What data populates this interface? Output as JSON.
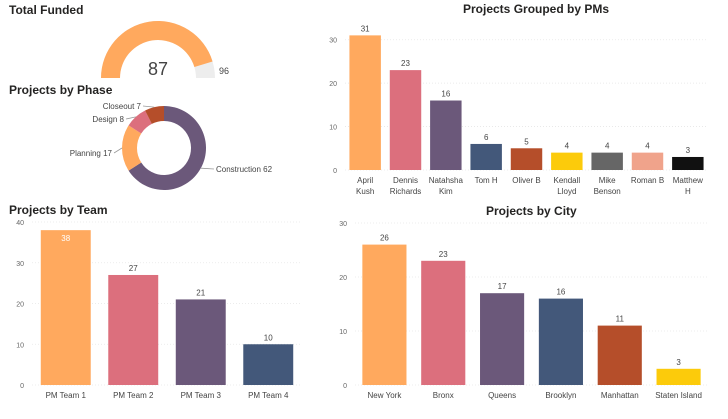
{
  "colors": [
    "#FFA95E",
    "#DC6F7D",
    "#6B587A",
    "#43587A",
    "#B54E2A",
    "#FCCB0B",
    "#666666",
    "#F0A38B",
    "#111111"
  ],
  "chart_data": [
    {
      "id": "total_funded",
      "type": "gauge",
      "title": "Total Funded",
      "value": 87,
      "max": 96,
      "value_label": "87",
      "max_label": "96",
      "fill_color": "#FFA95E",
      "track_color": "#EDEDED"
    },
    {
      "id": "by_phase",
      "type": "pie",
      "donut": true,
      "title": "Projects by Phase",
      "categories": [
        "Construction",
        "Planning",
        "Design",
        "Closeout"
      ],
      "values": [
        62,
        17,
        8,
        7
      ],
      "labels": [
        "Construction 62",
        "Planning 17",
        "Design 8",
        "Closeout 7"
      ],
      "colors": [
        "#6B587A",
        "#FFA95E",
        "#DC6F7D",
        "#B54E2A"
      ]
    },
    {
      "id": "by_pm",
      "type": "bar",
      "title": "Projects Grouped by PMs",
      "categories": [
        [
          "April",
          "Kush"
        ],
        [
          "Dennis",
          "Richards"
        ],
        [
          "Natahsha",
          "Kim"
        ],
        [
          "Tom H"
        ],
        [
          "Oliver B"
        ],
        [
          "Kendall",
          "Lloyd"
        ],
        [
          "Mike",
          "Benson"
        ],
        [
          "Roman B"
        ],
        [
          "Matthew",
          "H"
        ]
      ],
      "values": [
        31,
        23,
        16,
        6,
        5,
        4,
        4,
        4,
        3
      ],
      "data_labels": [
        "31",
        "23",
        "16",
        "6",
        "5",
        "4",
        "4",
        "4",
        "3"
      ],
      "colors": [
        "#FFA95E",
        "#DC6F7D",
        "#6B587A",
        "#43587A",
        "#B54E2A",
        "#FCCB0B",
        "#666666",
        "#F0A38B",
        "#111111"
      ],
      "ylim": [
        0,
        35
      ],
      "yticks": [
        "0",
        "10",
        "20",
        "30"
      ],
      "grid": true
    },
    {
      "id": "by_team",
      "type": "bar",
      "title": "Projects by Team",
      "categories": [
        [
          "PM Team 1"
        ],
        [
          "PM Team 2"
        ],
        [
          "PM Team 3"
        ],
        [
          "PM Team 4"
        ]
      ],
      "values": [
        38,
        27,
        21,
        10
      ],
      "data_labels": [
        "38",
        "27",
        "21",
        "10"
      ],
      "colors": [
        "#FFA95E",
        "#DC6F7D",
        "#6B587A",
        "#43587A"
      ],
      "ylim": [
        0,
        40
      ],
      "yticks": [
        "0",
        "10",
        "20",
        "30",
        "40"
      ],
      "grid": true
    },
    {
      "id": "by_city",
      "type": "bar",
      "title": "Projects by City",
      "categories": [
        [
          "New York"
        ],
        [
          "Bronx"
        ],
        [
          "Queens"
        ],
        [
          "Brooklyn"
        ],
        [
          "Manhattan"
        ],
        [
          "Staten Island"
        ]
      ],
      "values": [
        26,
        23,
        17,
        16,
        11,
        3
      ],
      "data_labels": [
        "26",
        "23",
        "17",
        "16",
        "11",
        "3"
      ],
      "colors": [
        "#FFA95E",
        "#DC6F7D",
        "#6B587A",
        "#43587A",
        "#B54E2A",
        "#FCCB0B"
      ],
      "ylim": [
        0,
        30
      ],
      "yticks": [
        "0",
        "10",
        "20",
        "30"
      ],
      "grid": true
    }
  ]
}
